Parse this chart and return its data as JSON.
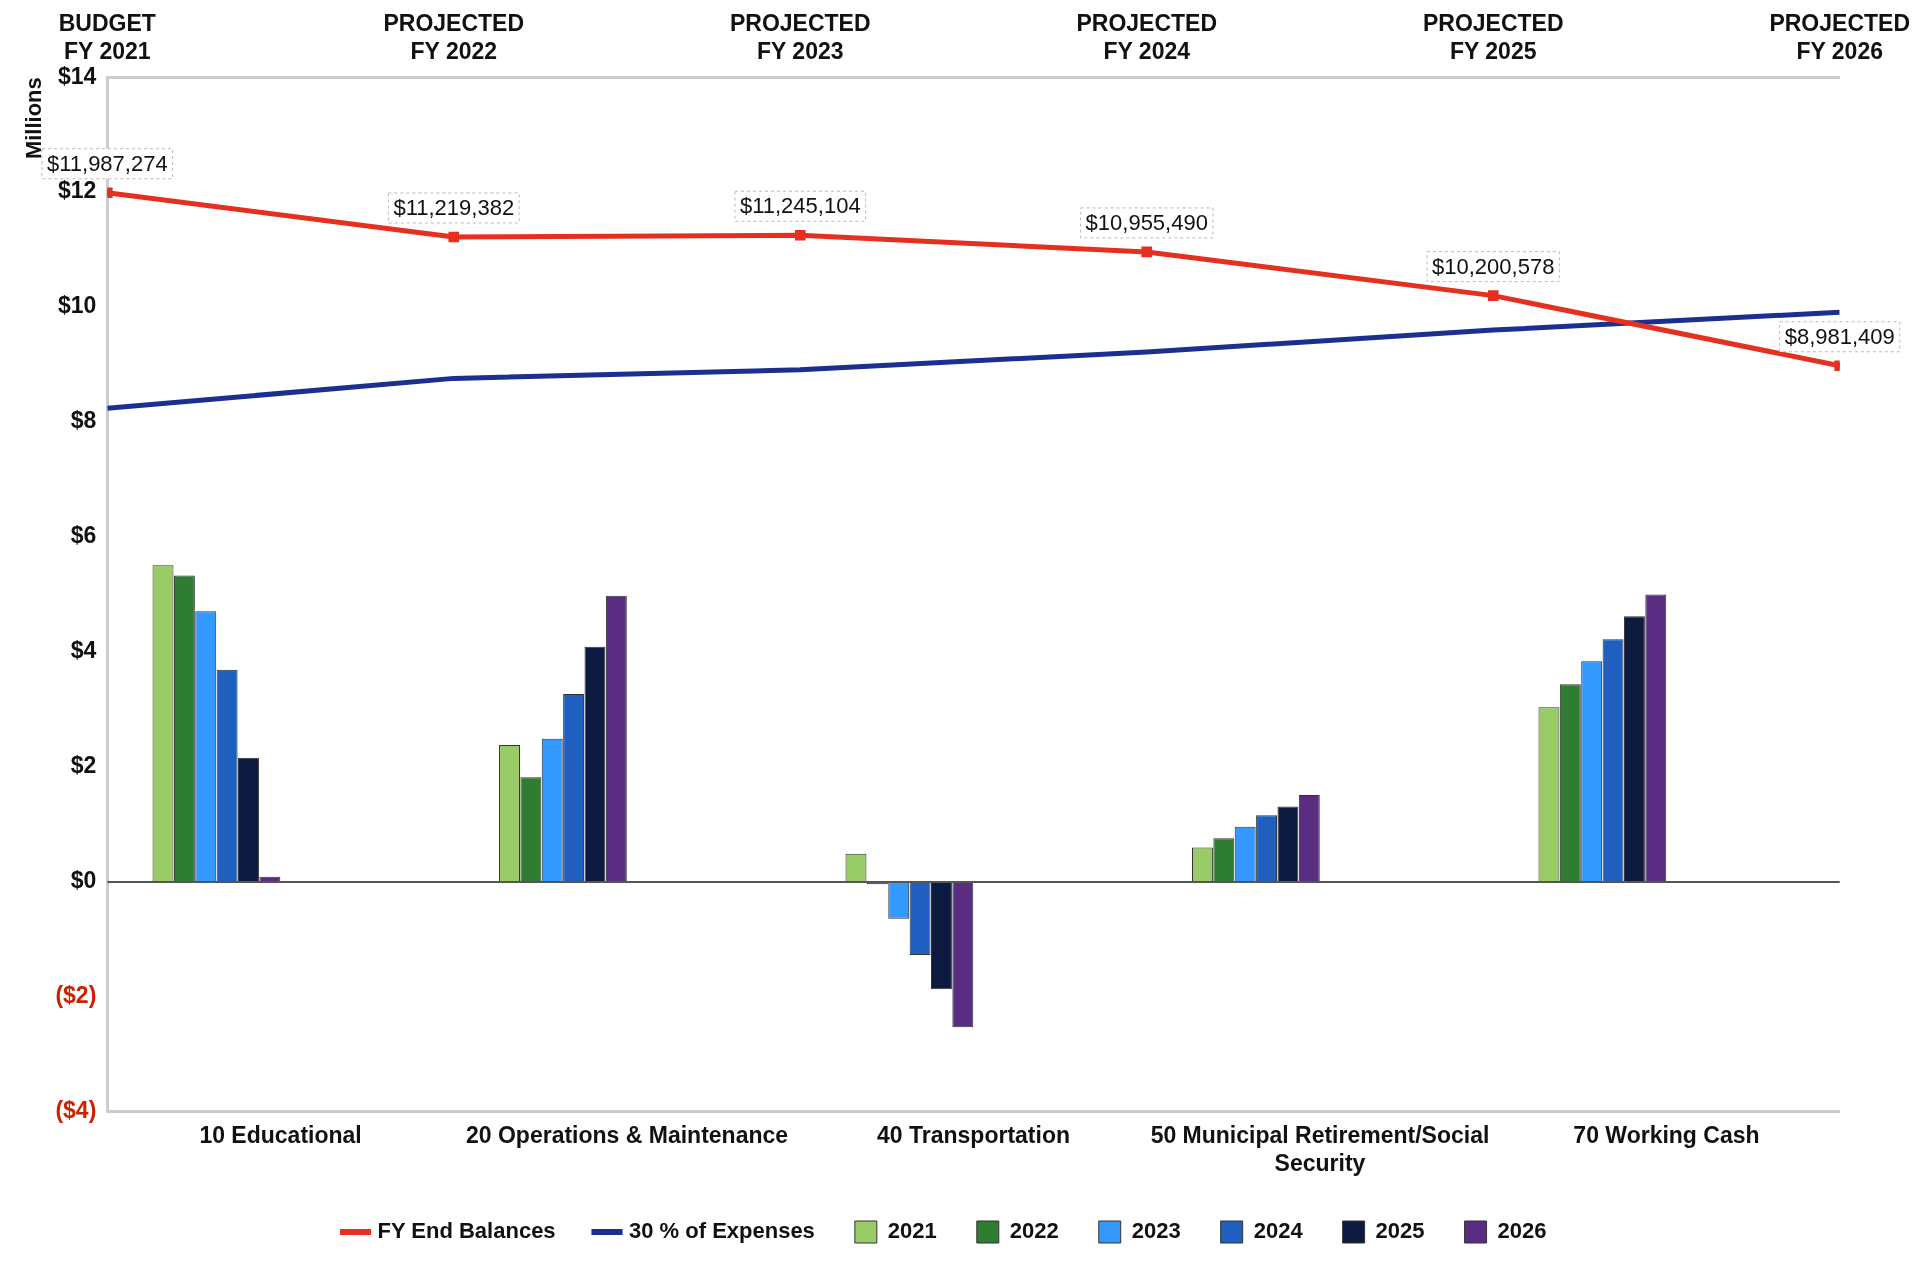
{
  "chart_data": {
    "type": "bar",
    "ylabel": "Millions",
    "categories": [
      "10 Educational",
      "20 Operations & Maintenance",
      "40 Transportation",
      "50 Municipal Retirement/Social Security",
      "70 Working Cash"
    ],
    "series": [
      {
        "name": "2021",
        "color": "#99cc66",
        "values": [
          5.51,
          2.38,
          0.49,
          0.6,
          3.04
        ]
      },
      {
        "name": "2022",
        "color": "#2e7d32",
        "values": [
          5.33,
          1.82,
          -0.04,
          0.76,
          3.44
        ]
      },
      {
        "name": "2023",
        "color": "#3399ff",
        "values": [
          4.71,
          2.49,
          -0.64,
          0.96,
          3.84
        ]
      },
      {
        "name": "2024",
        "color": "#1f5fc0",
        "values": [
          3.69,
          3.27,
          -1.27,
          1.16,
          4.22
        ]
      },
      {
        "name": "2025",
        "color": "#0d1a40",
        "values": [
          2.16,
          4.09,
          -1.87,
          1.31,
          4.62
        ]
      },
      {
        "name": "2026",
        "color": "#5a2d82",
        "values": [
          0.09,
          4.98,
          -2.53,
          1.51,
          5.0
        ]
      },
      {
        "name": "FY End Balances",
        "type": "line",
        "axis": "x2",
        "marker": "square",
        "color": "#e53020",
        "x": [
          "2021",
          "2022",
          "2023",
          "2024",
          "2025",
          "2026"
        ],
        "values": [
          11.99,
          11.22,
          11.25,
          10.96,
          10.2,
          8.98
        ]
      },
      {
        "name": "30 % of Expenses",
        "type": "line",
        "axis": "x2",
        "marker": "none",
        "color": "#1a2f8f",
        "x": [
          "2021",
          "2022",
          "2023",
          "2024",
          "2025",
          "2026"
        ],
        "values": [
          8.24,
          8.76,
          8.91,
          9.22,
          9.6,
          9.91
        ]
      }
    ],
    "annotations": [
      "$11,987,274",
      "$11,219,382",
      "$11,245,104",
      "$10,955,490",
      "$10,200,578",
      "$8,981,409"
    ],
    "ylim": [
      -4,
      14
    ],
    "yticks": [
      {
        "value": -4,
        "label": "($4)"
      },
      {
        "value": -2,
        "label": "($2)"
      },
      {
        "value": 0,
        "label": "$0"
      },
      {
        "value": 2,
        "label": "$2"
      },
      {
        "value": 4,
        "label": "$4"
      },
      {
        "value": 6,
        "label": "$6"
      },
      {
        "value": 8,
        "label": "$8"
      },
      {
        "value": 10,
        "label": "$10"
      },
      {
        "value": 12,
        "label": "$12"
      },
      {
        "value": 14,
        "label": "$14"
      }
    ],
    "x2lim": [
      "2021",
      "2026"
    ],
    "x2ticks": [
      {
        "value": "2021",
        "label": "BUDGET FY 2021"
      },
      {
        "value": "2022",
        "label": "PROJECTED FY 2022"
      },
      {
        "value": "2023",
        "label": "PROJECTED FY 2023"
      },
      {
        "value": "2024",
        "label": "PROJECTED FY 2024"
      },
      {
        "value": "2025",
        "label": "PROJECTED FY 2025"
      },
      {
        "value": "2026",
        "label": "PROJECTED FY 2026"
      }
    ],
    "ref_lines": [
      {
        "axis": "y",
        "value": 0,
        "color": "#555555"
      }
    ],
    "grid": false,
    "legend": "bottom"
  }
}
